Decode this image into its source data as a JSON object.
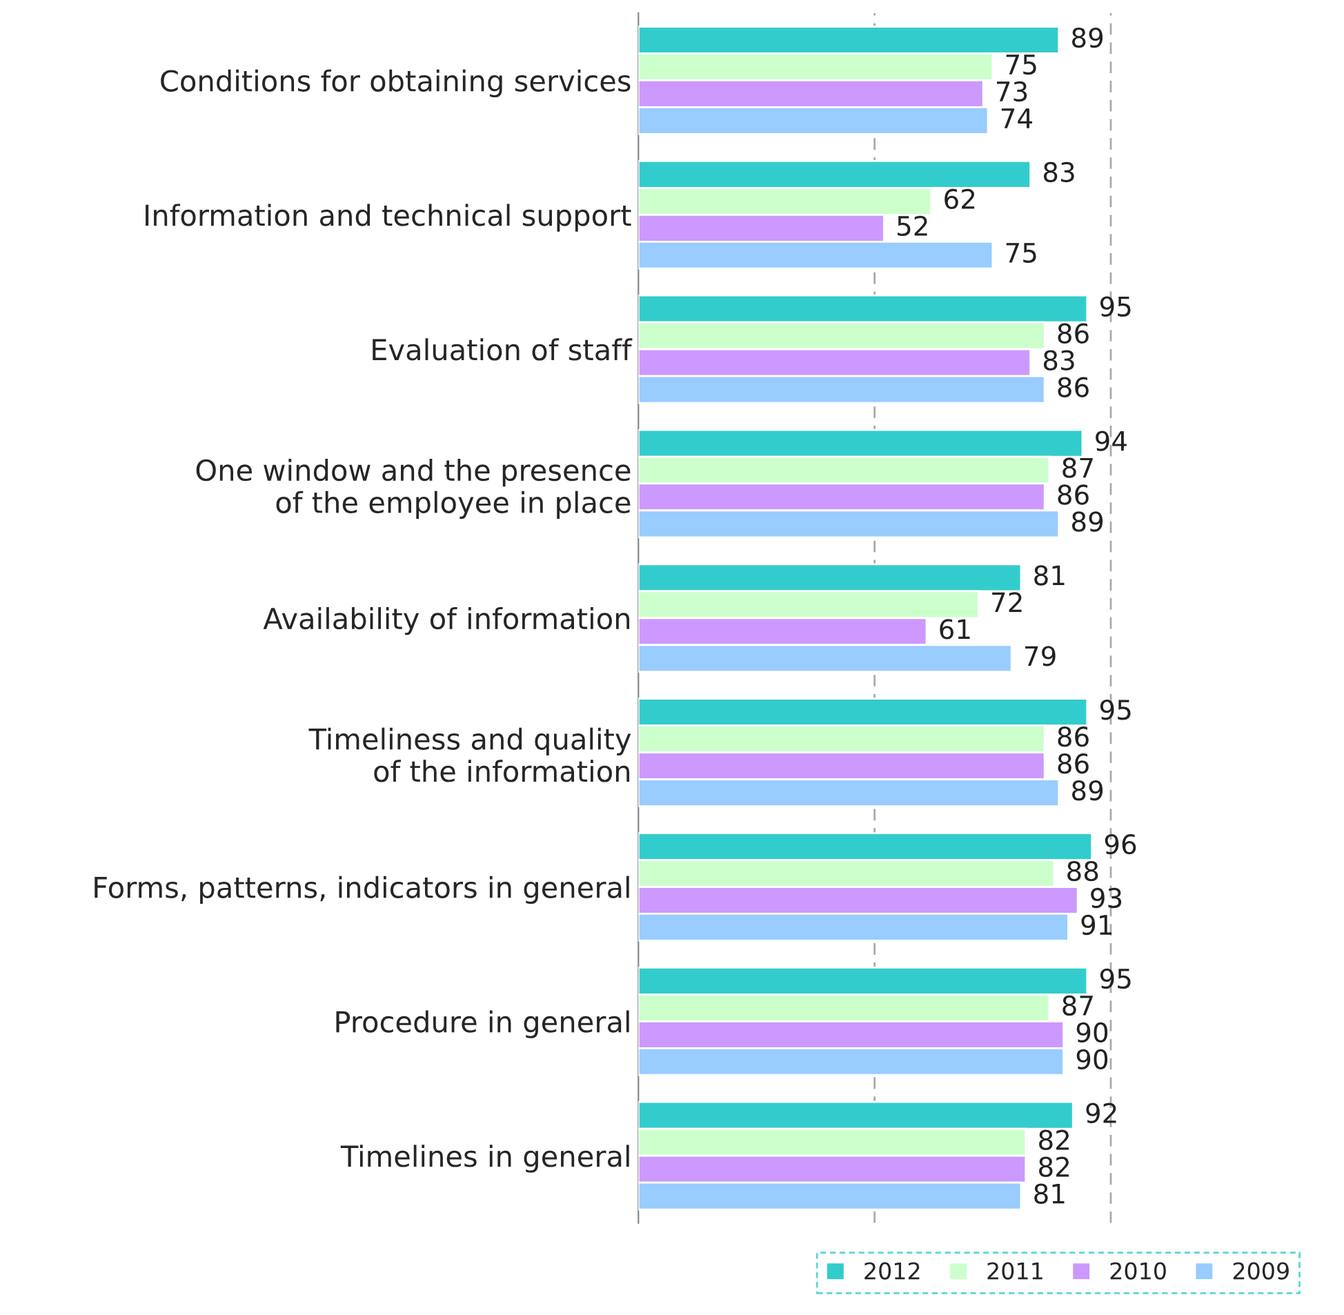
{
  "chart_data": {
    "type": "bar",
    "orientation": "horizontal",
    "categories": [
      "Conditions for obtaining services",
      "Information and technical support",
      "Evaluation of staff",
      "One window and the presence of the employee in place",
      "Availability of information",
      "Timeliness and quality of the information",
      "Forms, patterns, indicators in general",
      "Procedure in general",
      "Timelines in general"
    ],
    "series": [
      {
        "name": "2012",
        "color": "#33cccc",
        "values": [
          89,
          83,
          95,
          94,
          81,
          95,
          96,
          95,
          92
        ]
      },
      {
        "name": "2011",
        "color": "#ccffcc",
        "values": [
          75,
          62,
          86,
          87,
          72,
          86,
          88,
          87,
          82
        ]
      },
      {
        "name": "2010",
        "color": "#cc99ff",
        "values": [
          73,
          52,
          83,
          86,
          61,
          86,
          93,
          90,
          82
        ]
      },
      {
        "name": "2009",
        "color": "#99ccff",
        "values": [
          74,
          75,
          86,
          89,
          79,
          89,
          91,
          90,
          81
        ]
      }
    ],
    "ref_lines": [
      {
        "axis": "x",
        "value": 50,
        "color": "#aaaaaa",
        "line_style": "dashed"
      },
      {
        "axis": "x",
        "value": 100,
        "color": "#aaaaaa",
        "line_style": "dashed"
      }
    ],
    "legend": "bottom",
    "data_labels": true,
    "tick_labels": "y"
  }
}
